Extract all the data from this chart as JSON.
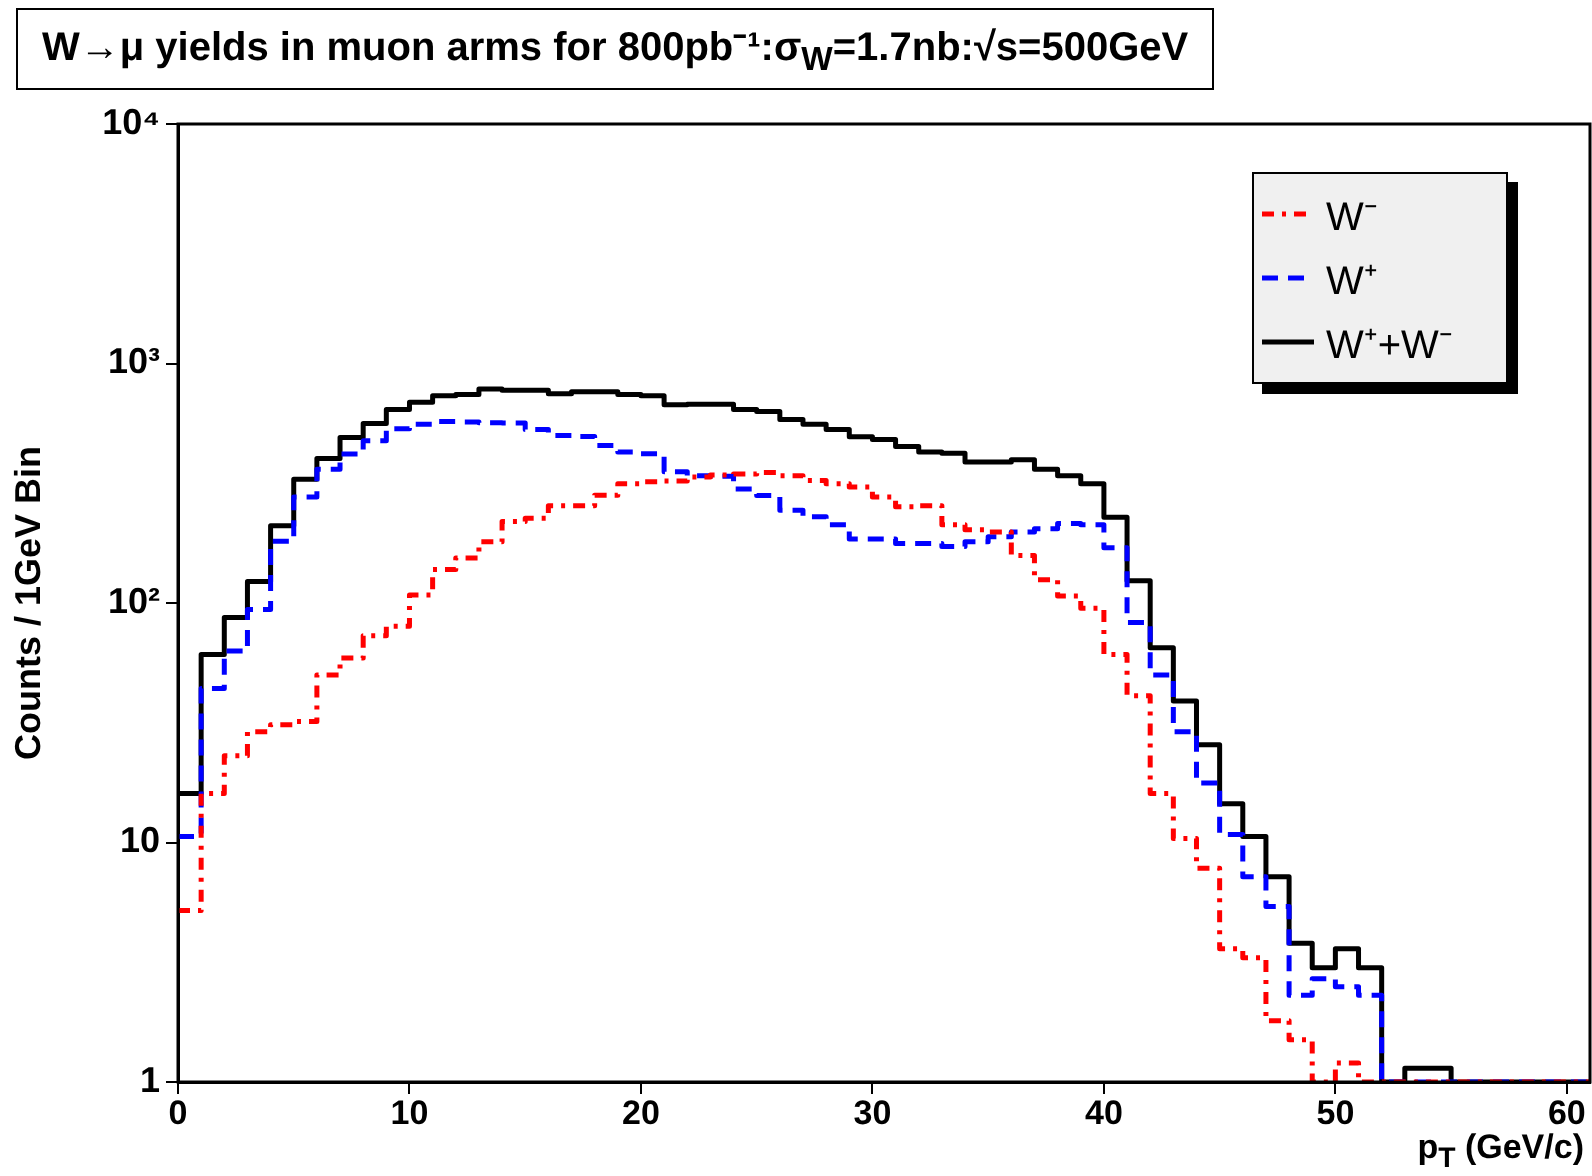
{
  "chart_data": {
    "type": "histogram",
    "title": "W→μ yields in muon arms for 800pb⁻¹:σ$_{W}$=1.7nb:√s=500GeV",
    "xlabel": "p$_{T}$ (GeV/c)",
    "ylabel": "Counts / 1GeV Bin",
    "bins": [
      0,
      1,
      2,
      3,
      4,
      5,
      6,
      7,
      8,
      9,
      10,
      11,
      12,
      13,
      14,
      15,
      16,
      17,
      18,
      19,
      20,
      21,
      22,
      23,
      24,
      25,
      26,
      27,
      28,
      29,
      30,
      31,
      32,
      33,
      34,
      35,
      36,
      37,
      38,
      39,
      40,
      41,
      42,
      43,
      44,
      45,
      46,
      47,
      48,
      49,
      50,
      51,
      52,
      53,
      54,
      55,
      56,
      57,
      58,
      59,
      60,
      61
    ],
    "series": [
      {
        "name": "W⁻",
        "color": "#ff0000",
        "line_style": "dotted",
        "values": [
          5.2,
          16,
          23,
          29,
          31,
          32,
          50,
          59,
          73,
          80,
          108,
          138,
          154,
          180,
          219,
          226,
          255,
          255,
          282,
          315,
          321,
          323,
          336,
          342,
          346,
          351,
          340,
          325,
          315,
          305,
          277,
          252,
          255,
          212,
          202,
          198,
          158,
          125,
          107,
          95,
          61,
          41,
          16,
          10.4,
          7.8,
          3.6,
          3.3,
          1.8,
          1.5,
          1,
          1.2,
          1,
          1,
          1,
          1,
          1,
          1,
          1,
          1,
          1,
          1
        ]
      },
      {
        "name": "W⁺",
        "color": "#0000ff",
        "line_style": "dashed",
        "values": [
          10.6,
          44,
          63,
          94,
          181,
          277,
          362,
          419,
          476,
          534,
          558,
          572,
          570,
          566,
          564,
          530,
          501,
          496,
          455,
          427,
          420,
          353,
          340,
          338,
          299,
          281,
          244,
          229,
          212,
          185,
          185,
          177,
          177,
          172,
          180,
          189,
          198,
          204,
          215,
          212,
          170,
          83,
          50,
          29,
          17.7,
          10.8,
          7.2,
          5.4,
          2.3,
          2.7,
          2.5,
          2.3,
          1,
          1,
          1,
          1,
          1,
          1,
          1,
          1,
          1
        ]
      },
      {
        "name": "W⁺+W⁻",
        "color": "#000000",
        "line_style": "solid",
        "values": [
          16,
          61,
          87,
          123,
          210,
          329,
          401,
          491,
          562,
          642,
          689,
          734,
          743,
          783,
          773,
          773,
          748,
          763,
          763,
          743,
          734,
          672,
          676,
          676,
          642,
          630,
          584,
          558,
          530,
          495,
          482,
          450,
          427,
          422,
          388,
          388,
          396,
          362,
          340,
          315,
          228,
          124,
          65,
          39,
          25.6,
          14.5,
          10.6,
          7.2,
          3.8,
          3.0,
          3.6,
          3.0,
          1,
          1.14,
          1.14,
          1,
          1,
          1,
          1,
          1,
          1
        ]
      }
    ],
    "xlim": [
      0,
      61
    ],
    "xticks": [
      0,
      10,
      20,
      30,
      40,
      50,
      60
    ],
    "ylim": [
      1,
      10000
    ],
    "yticks": [
      1,
      10,
      {
        "value": 100,
        "label": "10²"
      },
      {
        "value": 1000,
        "label": "10³"
      },
      {
        "value": 10000,
        "label": "10⁴"
      }
    ],
    "log": "y",
    "grid": false,
    "legend": "top right"
  }
}
